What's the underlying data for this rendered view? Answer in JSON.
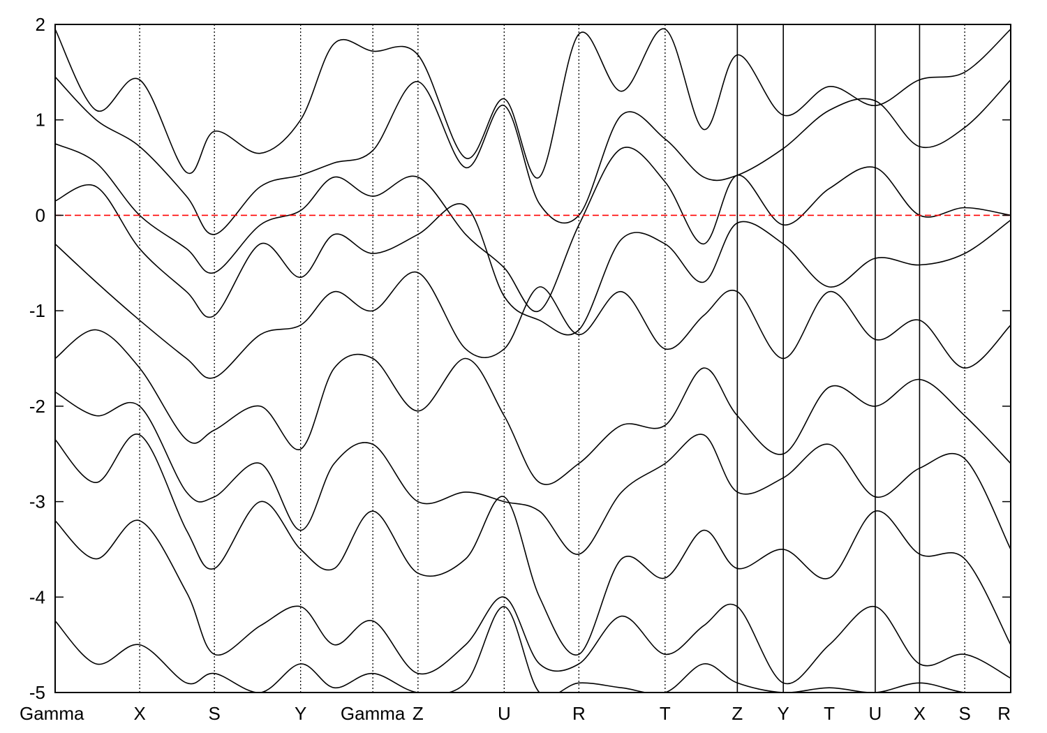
{
  "chart_data": {
    "type": "line",
    "title": "",
    "xlabel": "",
    "ylabel": "",
    "ylim": [
      -5,
      2
    ],
    "yticks": [
      2,
      1,
      0,
      -1,
      -2,
      -3,
      -4,
      -5
    ],
    "grid": false,
    "legend": "none",
    "xlim": [
      0,
      10.0
    ],
    "kpoints": [
      {
        "label": "Gamma",
        "x": 0.0,
        "line": "none"
      },
      {
        "label": "X",
        "x": 1.03,
        "line": "dotted"
      },
      {
        "label": "S",
        "x": 1.94,
        "line": "dotted"
      },
      {
        "label": "Y",
        "x": 2.99,
        "line": "dotted"
      },
      {
        "label": "Gamma",
        "x": 3.87,
        "line": "dotted"
      },
      {
        "label": "Z",
        "x": 4.42,
        "line": "dotted"
      },
      {
        "label": "U",
        "x": 5.47,
        "line": "dotted"
      },
      {
        "label": "R",
        "x": 6.38,
        "line": "dotted"
      },
      {
        "label": "T",
        "x": 7.43,
        "line": "dotted"
      },
      {
        "label": "Z",
        "x": 8.31,
        "line": "solid"
      },
      {
        "label": "Y",
        "x": 8.87,
        "line": "solid"
      },
      {
        "label": "T",
        "x": 9.43,
        "line": "none"
      },
      {
        "label": "U",
        "x": 9.99,
        "line": "solid"
      },
      {
        "label": "X",
        "x": 10.53,
        "line": "solid"
      },
      {
        "label": "S",
        "x": 11.08,
        "line": "dotted"
      },
      {
        "label": "R",
        "x": 11.64,
        "line": "none"
      }
    ],
    "fermi_level": {
      "y": 0,
      "color": "#ff0000",
      "style": "dashed"
    },
    "band_color": "#000000",
    "bands": [
      [
        [
          0.0,
          1.95
        ],
        [
          0.5,
          1.1
        ],
        [
          1.03,
          1.42
        ],
        [
          1.6,
          0.45
        ],
        [
          1.94,
          0.88
        ],
        [
          2.5,
          0.65
        ],
        [
          2.99,
          1.0
        ],
        [
          3.4,
          1.8
        ],
        [
          3.87,
          1.72
        ],
        [
          4.42,
          1.68
        ],
        [
          5.0,
          0.6
        ],
        [
          5.47,
          1.22
        ],
        [
          5.9,
          0.4
        ],
        [
          6.38,
          1.9
        ],
        [
          6.9,
          1.3
        ],
        [
          7.43,
          1.95
        ],
        [
          7.9,
          0.9
        ],
        [
          8.31,
          1.68
        ],
        [
          8.87,
          1.05
        ],
        [
          9.43,
          1.35
        ],
        [
          9.99,
          1.15
        ],
        [
          10.53,
          1.42
        ],
        [
          11.08,
          1.5
        ],
        [
          11.64,
          1.95
        ]
      ],
      [
        [
          0.0,
          1.45
        ],
        [
          0.5,
          1.0
        ],
        [
          1.03,
          0.72
        ],
        [
          1.6,
          0.2
        ],
        [
          1.94,
          -0.2
        ],
        [
          2.5,
          0.3
        ],
        [
          2.99,
          0.42
        ],
        [
          3.4,
          0.55
        ],
        [
          3.87,
          0.68
        ],
        [
          4.42,
          1.4
        ],
        [
          5.0,
          0.5
        ],
        [
          5.47,
          1.15
        ],
        [
          5.9,
          0.12
        ],
        [
          6.38,
          0.0
        ],
        [
          6.9,
          1.05
        ],
        [
          7.43,
          0.8
        ],
        [
          7.9,
          0.4
        ],
        [
          8.31,
          0.42
        ],
        [
          8.87,
          0.7
        ],
        [
          9.43,
          1.1
        ],
        [
          9.99,
          1.2
        ],
        [
          10.53,
          0.72
        ],
        [
          11.08,
          0.92
        ],
        [
          11.64,
          1.42
        ]
      ],
      [
        [
          0.0,
          0.75
        ],
        [
          0.5,
          0.55
        ],
        [
          1.03,
          0.0
        ],
        [
          1.6,
          -0.35
        ],
        [
          1.94,
          -0.6
        ],
        [
          2.5,
          -0.1
        ],
        [
          2.99,
          0.05
        ],
        [
          3.4,
          0.4
        ],
        [
          3.87,
          0.2
        ],
        [
          4.42,
          0.4
        ],
        [
          5.0,
          -0.2
        ],
        [
          5.47,
          -0.55
        ],
        [
          5.9,
          -1.0
        ],
        [
          6.38,
          -0.1
        ],
        [
          6.9,
          0.7
        ],
        [
          7.43,
          0.35
        ],
        [
          7.9,
          -0.3
        ],
        [
          8.31,
          0.42
        ],
        [
          8.87,
          -0.1
        ],
        [
          9.43,
          0.28
        ],
        [
          9.99,
          0.5
        ],
        [
          10.53,
          0.0
        ],
        [
          11.08,
          0.08
        ],
        [
          11.64,
          0.0
        ]
      ],
      [
        [
          0.0,
          0.15
        ],
        [
          0.5,
          0.3
        ],
        [
          1.03,
          -0.35
        ],
        [
          1.6,
          -0.8
        ],
        [
          1.94,
          -1.05
        ],
        [
          2.5,
          -0.3
        ],
        [
          2.99,
          -0.65
        ],
        [
          3.4,
          -0.2
        ],
        [
          3.87,
          -0.4
        ],
        [
          4.42,
          -0.2
        ],
        [
          5.0,
          0.1
        ],
        [
          5.47,
          -0.85
        ],
        [
          5.9,
          -1.1
        ],
        [
          6.38,
          -1.2
        ],
        [
          6.9,
          -0.25
        ],
        [
          7.43,
          -0.3
        ],
        [
          7.9,
          -0.7
        ],
        [
          8.31,
          -0.08
        ],
        [
          8.87,
          -0.3
        ],
        [
          9.43,
          -0.75
        ],
        [
          9.99,
          -0.45
        ],
        [
          10.53,
          -0.52
        ],
        [
          11.08,
          -0.4
        ],
        [
          11.64,
          -0.05
        ]
      ],
      [
        [
          0.0,
          -0.3
        ],
        [
          0.5,
          -0.7
        ],
        [
          1.03,
          -1.1
        ],
        [
          1.6,
          -1.5
        ],
        [
          1.94,
          -1.7
        ],
        [
          2.5,
          -1.25
        ],
        [
          2.99,
          -1.15
        ],
        [
          3.4,
          -0.8
        ],
        [
          3.87,
          -1.0
        ],
        [
          4.42,
          -0.6
        ],
        [
          5.0,
          -1.4
        ],
        [
          5.47,
          -1.4
        ],
        [
          5.9,
          -0.75
        ],
        [
          6.38,
          -1.25
        ],
        [
          6.9,
          -0.8
        ],
        [
          7.43,
          -1.4
        ],
        [
          7.9,
          -1.05
        ],
        [
          8.31,
          -0.8
        ],
        [
          8.87,
          -1.5
        ],
        [
          9.43,
          -0.8
        ],
        [
          9.99,
          -1.3
        ],
        [
          10.53,
          -1.1
        ],
        [
          11.08,
          -1.6
        ],
        [
          11.64,
          -1.15
        ]
      ],
      [
        [
          0.0,
          -1.5
        ],
        [
          0.5,
          -1.2
        ],
        [
          1.03,
          -1.6
        ],
        [
          1.6,
          -2.35
        ],
        [
          1.94,
          -2.25
        ],
        [
          2.5,
          -2.0
        ],
        [
          2.99,
          -2.45
        ],
        [
          3.4,
          -1.6
        ],
        [
          3.87,
          -1.5
        ],
        [
          4.42,
          -2.05
        ],
        [
          5.0,
          -1.5
        ],
        [
          5.47,
          -2.1
        ],
        [
          5.9,
          -2.8
        ],
        [
          6.38,
          -2.6
        ],
        [
          6.9,
          -2.2
        ],
        [
          7.43,
          -2.2
        ],
        [
          7.9,
          -1.6
        ],
        [
          8.31,
          -2.1
        ],
        [
          8.87,
          -2.5
        ],
        [
          9.43,
          -1.8
        ],
        [
          9.99,
          -2.0
        ],
        [
          10.53,
          -1.72
        ],
        [
          11.08,
          -2.1
        ],
        [
          11.64,
          -2.6
        ]
      ],
      [
        [
          0.0,
          -1.85
        ],
        [
          0.5,
          -2.1
        ],
        [
          1.03,
          -2.0
        ],
        [
          1.6,
          -2.9
        ],
        [
          1.94,
          -2.95
        ],
        [
          2.5,
          -2.6
        ],
        [
          2.99,
          -3.3
        ],
        [
          3.4,
          -2.6
        ],
        [
          3.87,
          -2.4
        ],
        [
          4.42,
          -3.0
        ],
        [
          5.0,
          -2.9
        ],
        [
          5.47,
          -3.0
        ],
        [
          5.9,
          -3.1
        ],
        [
          6.38,
          -3.55
        ],
        [
          6.9,
          -2.9
        ],
        [
          7.43,
          -2.6
        ],
        [
          7.9,
          -2.3
        ],
        [
          8.31,
          -2.9
        ],
        [
          8.87,
          -2.75
        ],
        [
          9.43,
          -2.4
        ],
        [
          9.99,
          -2.95
        ],
        [
          10.53,
          -2.65
        ],
        [
          11.08,
          -2.55
        ],
        [
          11.64,
          -3.5
        ]
      ],
      [
        [
          0.0,
          -2.35
        ],
        [
          0.5,
          -2.8
        ],
        [
          1.03,
          -2.3
        ],
        [
          1.6,
          -3.3
        ],
        [
          1.94,
          -3.7
        ],
        [
          2.5,
          -3.0
        ],
        [
          2.99,
          -3.5
        ],
        [
          3.4,
          -3.7
        ],
        [
          3.87,
          -3.1
        ],
        [
          4.42,
          -3.75
        ],
        [
          5.0,
          -3.6
        ],
        [
          5.47,
          -2.95
        ],
        [
          5.9,
          -4.0
        ],
        [
          6.38,
          -4.6
        ],
        [
          6.9,
          -3.6
        ],
        [
          7.43,
          -3.8
        ],
        [
          7.9,
          -3.3
        ],
        [
          8.31,
          -3.7
        ],
        [
          8.87,
          -3.5
        ],
        [
          9.43,
          -3.8
        ],
        [
          9.99,
          -3.1
        ],
        [
          10.53,
          -3.55
        ],
        [
          11.08,
          -3.6
        ],
        [
          11.64,
          -4.5
        ]
      ],
      [
        [
          0.0,
          -3.2
        ],
        [
          0.5,
          -3.6
        ],
        [
          1.03,
          -3.2
        ],
        [
          1.6,
          -3.95
        ],
        [
          1.94,
          -4.6
        ],
        [
          2.5,
          -4.3
        ],
        [
          2.99,
          -4.1
        ],
        [
          3.4,
          -4.5
        ],
        [
          3.87,
          -4.25
        ],
        [
          4.42,
          -4.8
        ],
        [
          5.0,
          -4.5
        ],
        [
          5.47,
          -4.0
        ],
        [
          5.9,
          -4.7
        ],
        [
          6.38,
          -4.7
        ],
        [
          6.9,
          -4.2
        ],
        [
          7.43,
          -4.6
        ],
        [
          7.9,
          -4.3
        ],
        [
          8.31,
          -4.1
        ],
        [
          8.87,
          -4.9
        ],
        [
          9.43,
          -4.5
        ],
        [
          9.99,
          -4.1
        ],
        [
          10.53,
          -4.7
        ],
        [
          11.08,
          -4.6
        ],
        [
          11.64,
          -4.85
        ]
      ],
      [
        [
          0.0,
          -4.25
        ],
        [
          0.5,
          -4.7
        ],
        [
          1.03,
          -4.5
        ],
        [
          1.6,
          -4.9
        ],
        [
          1.94,
          -4.8
        ],
        [
          2.5,
          -5.0
        ],
        [
          2.99,
          -4.7
        ],
        [
          3.4,
          -4.95
        ],
        [
          3.87,
          -4.8
        ],
        [
          4.42,
          -5.0
        ],
        [
          5.0,
          -4.9
        ],
        [
          5.47,
          -4.1
        ],
        [
          5.9,
          -5.0
        ],
        [
          6.38,
          -4.9
        ],
        [
          6.9,
          -4.95
        ],
        [
          7.43,
          -5.0
        ],
        [
          7.9,
          -4.7
        ],
        [
          8.31,
          -4.9
        ],
        [
          8.87,
          -5.0
        ],
        [
          9.43,
          -4.95
        ],
        [
          9.99,
          -5.0
        ],
        [
          10.53,
          -4.9
        ],
        [
          11.08,
          -5.0
        ],
        [
          11.64,
          -5.0
        ]
      ]
    ]
  }
}
